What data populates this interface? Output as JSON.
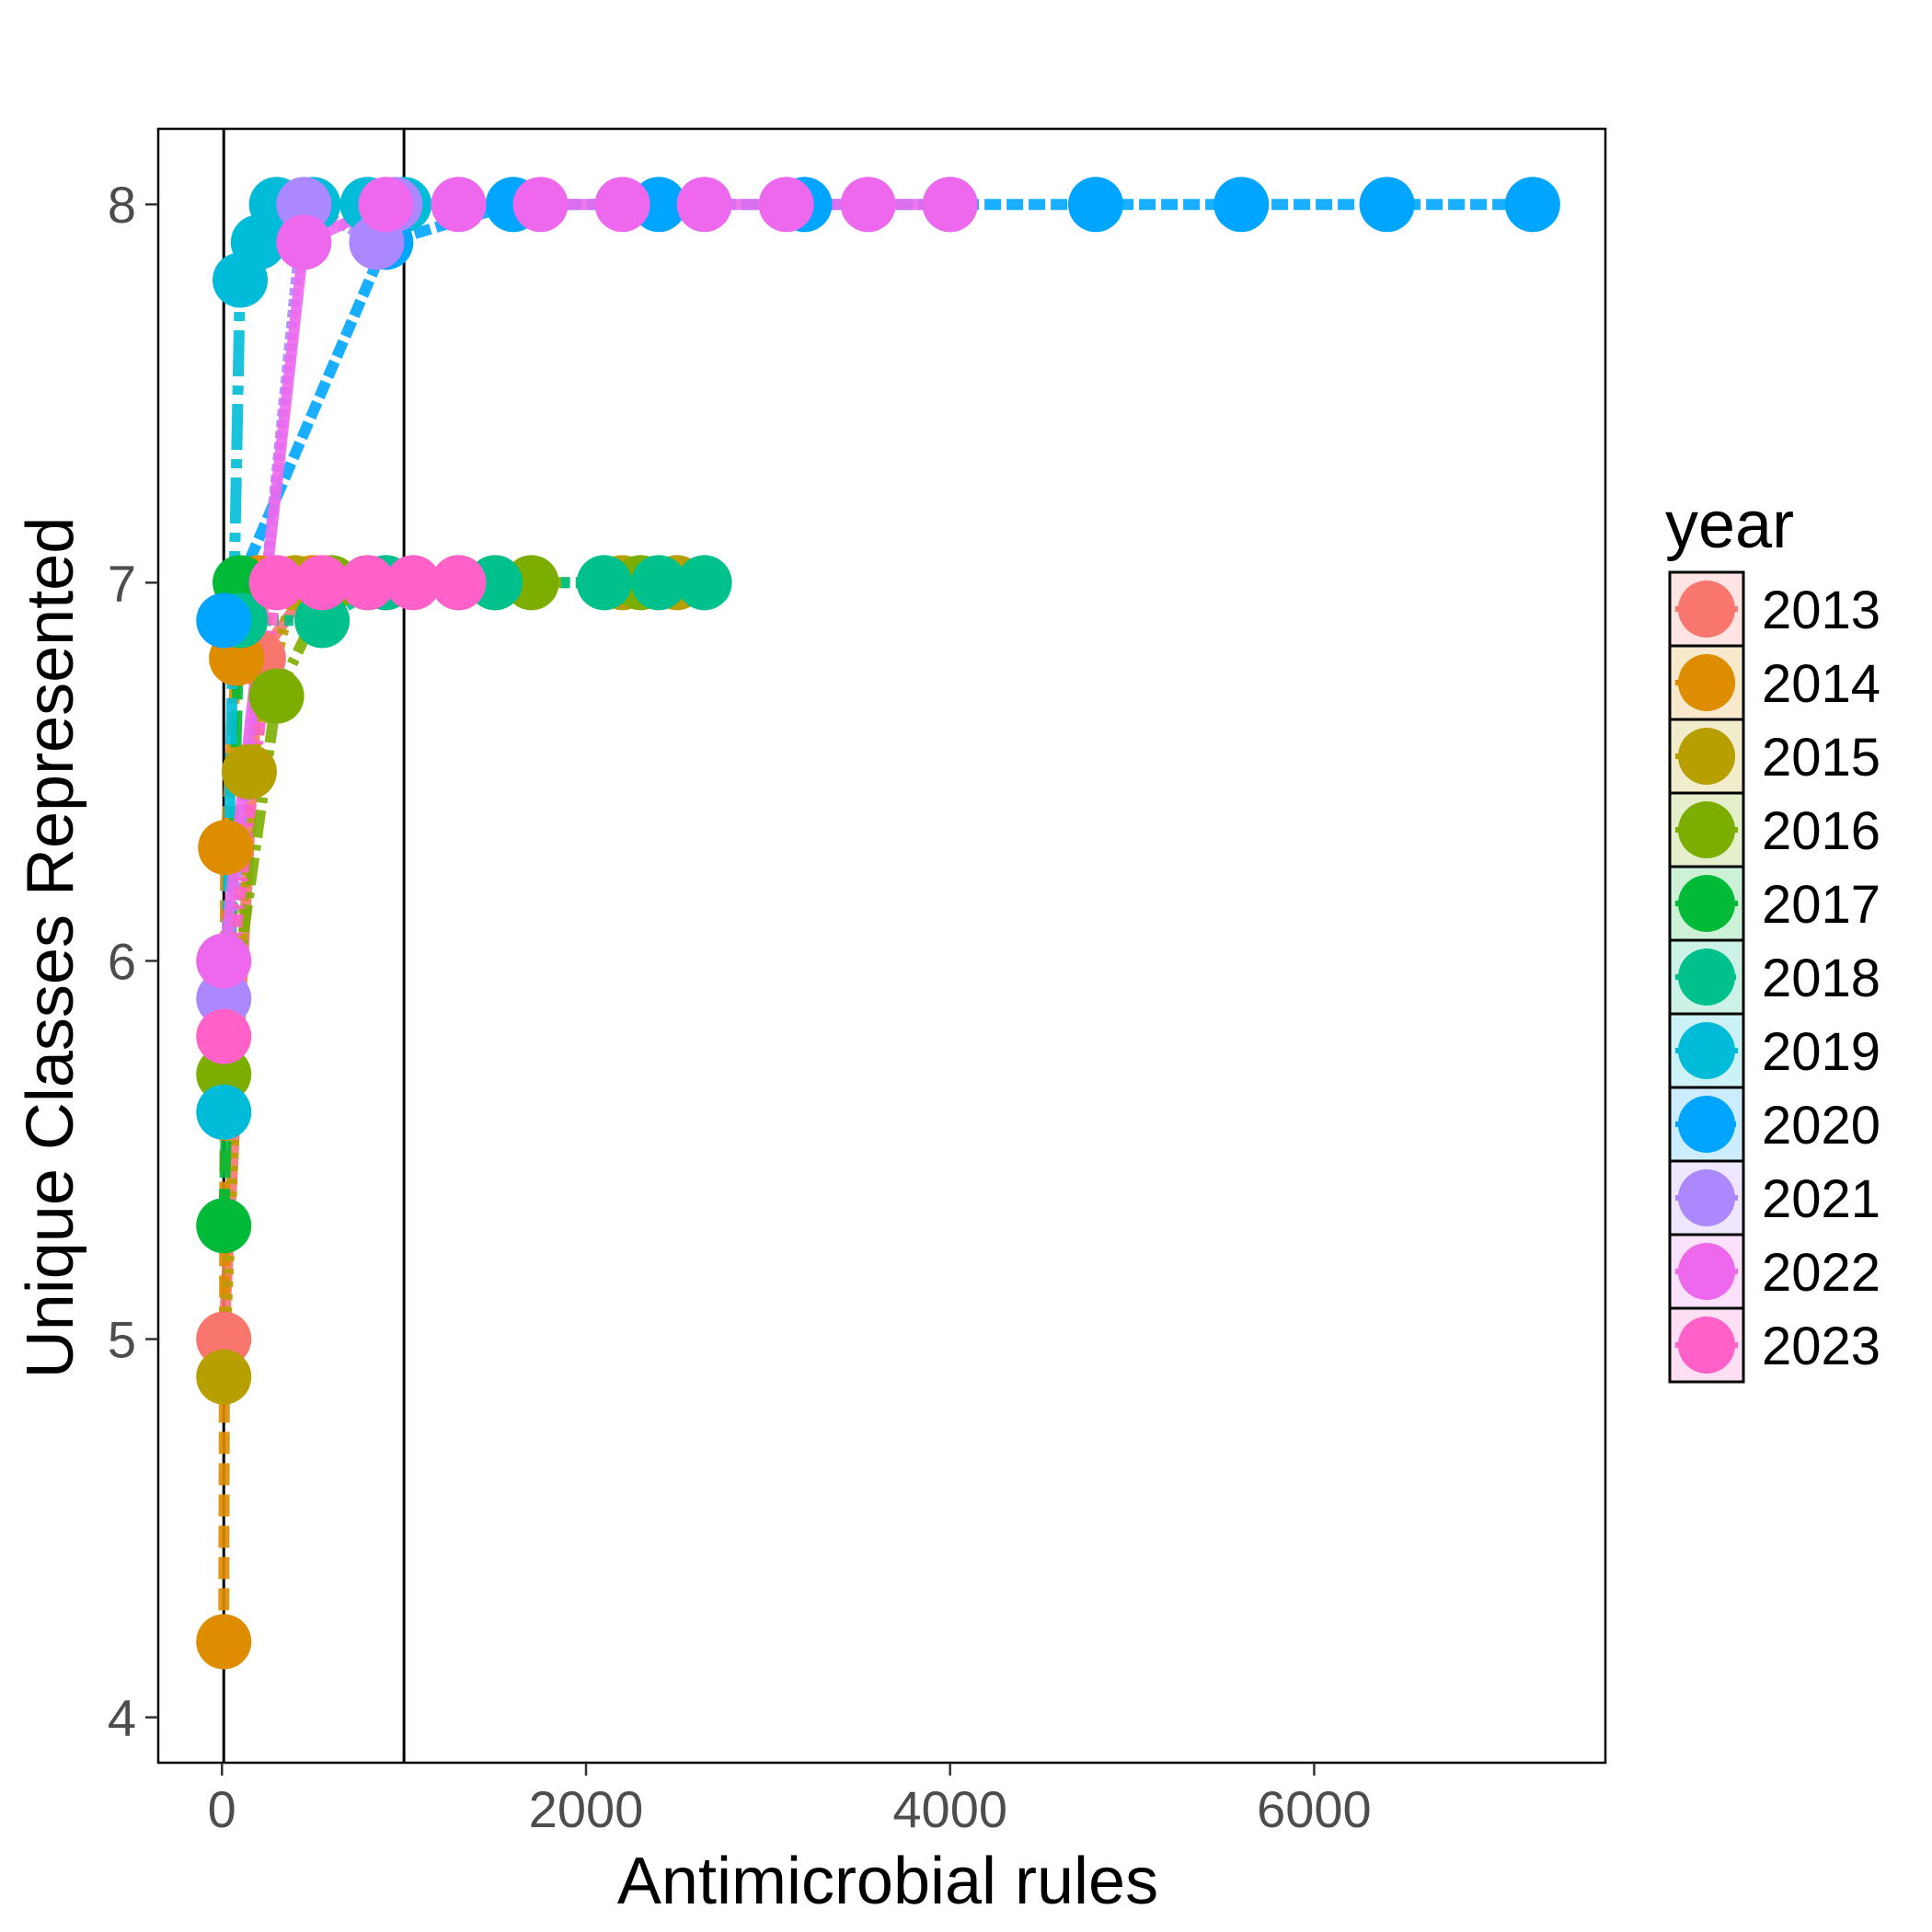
{
  "chart_data": {
    "type": "line",
    "title": "",
    "xlabel": "Antimicrobial rules",
    "ylabel": "Unique Classes Represented",
    "xlim": [
      -350,
      7600
    ],
    "ylim": [
      3.88,
      8.2
    ],
    "x_ticks": [
      0,
      2000,
      4000,
      6000
    ],
    "x_tick_labels": [
      "0",
      "2000",
      "4000",
      "6000"
    ],
    "y_ticks": [
      4,
      5,
      6,
      7,
      8
    ],
    "y_tick_labels": [
      "4",
      "5",
      "6",
      "7",
      "8"
    ],
    "vlines": [
      10,
      1000
    ],
    "grid": false,
    "legend": {
      "title": "year",
      "position": "right"
    },
    "series": [
      {
        "name": "2013",
        "color": "#F8766D",
        "points": [
          [
            10,
            5.0
          ],
          [
            200,
            6.8
          ],
          [
            500,
            7.0
          ],
          [
            900,
            7.0
          ]
        ]
      },
      {
        "name": "2014",
        "color": "#DE8C00",
        "points": [
          [
            10,
            4.2
          ],
          [
            20,
            6.3
          ],
          [
            80,
            6.8
          ],
          [
            200,
            7.0
          ],
          [
            500,
            7.0
          ]
        ]
      },
      {
        "name": "2015",
        "color": "#B79F00",
        "points": [
          [
            10,
            4.9
          ],
          [
            150,
            6.5
          ],
          [
            400,
            7.0
          ],
          [
            1500,
            7.0
          ],
          [
            2200,
            7.0
          ],
          [
            2500,
            7.0
          ]
        ]
      },
      {
        "name": "2016",
        "color": "#7CAE00",
        "points": [
          [
            10,
            5.7
          ],
          [
            300,
            6.7
          ],
          [
            600,
            7.0
          ],
          [
            1700,
            7.0
          ],
          [
            2300,
            7.0
          ]
        ]
      },
      {
        "name": "2017",
        "color": "#00BA38",
        "points": [
          [
            10,
            5.3
          ],
          [
            100,
            7.0
          ],
          [
            800,
            7.0
          ],
          [
            1300,
            7.0
          ]
        ]
      },
      {
        "name": "2018",
        "color": "#00C08B",
        "points": [
          [
            100,
            6.9
          ],
          [
            550,
            6.9
          ],
          [
            900,
            7.0
          ],
          [
            1500,
            7.0
          ],
          [
            2100,
            7.0
          ],
          [
            2400,
            7.0
          ],
          [
            2650,
            7.0
          ]
        ]
      },
      {
        "name": "2019",
        "color": "#00BCD8",
        "points": [
          [
            10,
            5.6
          ],
          [
            100,
            7.8
          ],
          [
            200,
            7.9
          ],
          [
            300,
            8.0
          ],
          [
            500,
            8.0
          ],
          [
            800,
            8.0
          ],
          [
            1000,
            8.0
          ]
        ]
      },
      {
        "name": "2020",
        "color": "#00A5FF",
        "points": [
          [
            10,
            6.9
          ],
          [
            900,
            7.9
          ],
          [
            1600,
            8.0
          ],
          [
            2400,
            8.0
          ],
          [
            3200,
            8.0
          ],
          [
            4000,
            8.0
          ],
          [
            4800,
            8.0
          ],
          [
            5600,
            8.0
          ],
          [
            6400,
            8.0
          ],
          [
            7200,
            8.0
          ]
        ]
      },
      {
        "name": "2021",
        "color": "#AC88FF",
        "points": [
          [
            10,
            5.9
          ],
          [
            450,
            8.0
          ],
          [
            850,
            7.9
          ],
          [
            950,
            8.0
          ]
        ]
      },
      {
        "name": "2022",
        "color": "#ED68ED",
        "points": [
          [
            10,
            6.0
          ],
          [
            450,
            7.9
          ],
          [
            900,
            8.0
          ],
          [
            1300,
            8.0
          ],
          [
            1750,
            8.0
          ],
          [
            2200,
            8.0
          ],
          [
            2650,
            8.0
          ],
          [
            3100,
            8.0
          ],
          [
            3550,
            8.0
          ],
          [
            4000,
            8.0
          ]
        ]
      },
      {
        "name": "2023",
        "color": "#FF61C9",
        "points": [
          [
            10,
            5.8
          ],
          [
            300,
            7.0
          ],
          [
            550,
            7.0
          ],
          [
            800,
            7.0
          ],
          [
            1050,
            7.0
          ],
          [
            1300,
            7.0
          ]
        ]
      }
    ]
  }
}
